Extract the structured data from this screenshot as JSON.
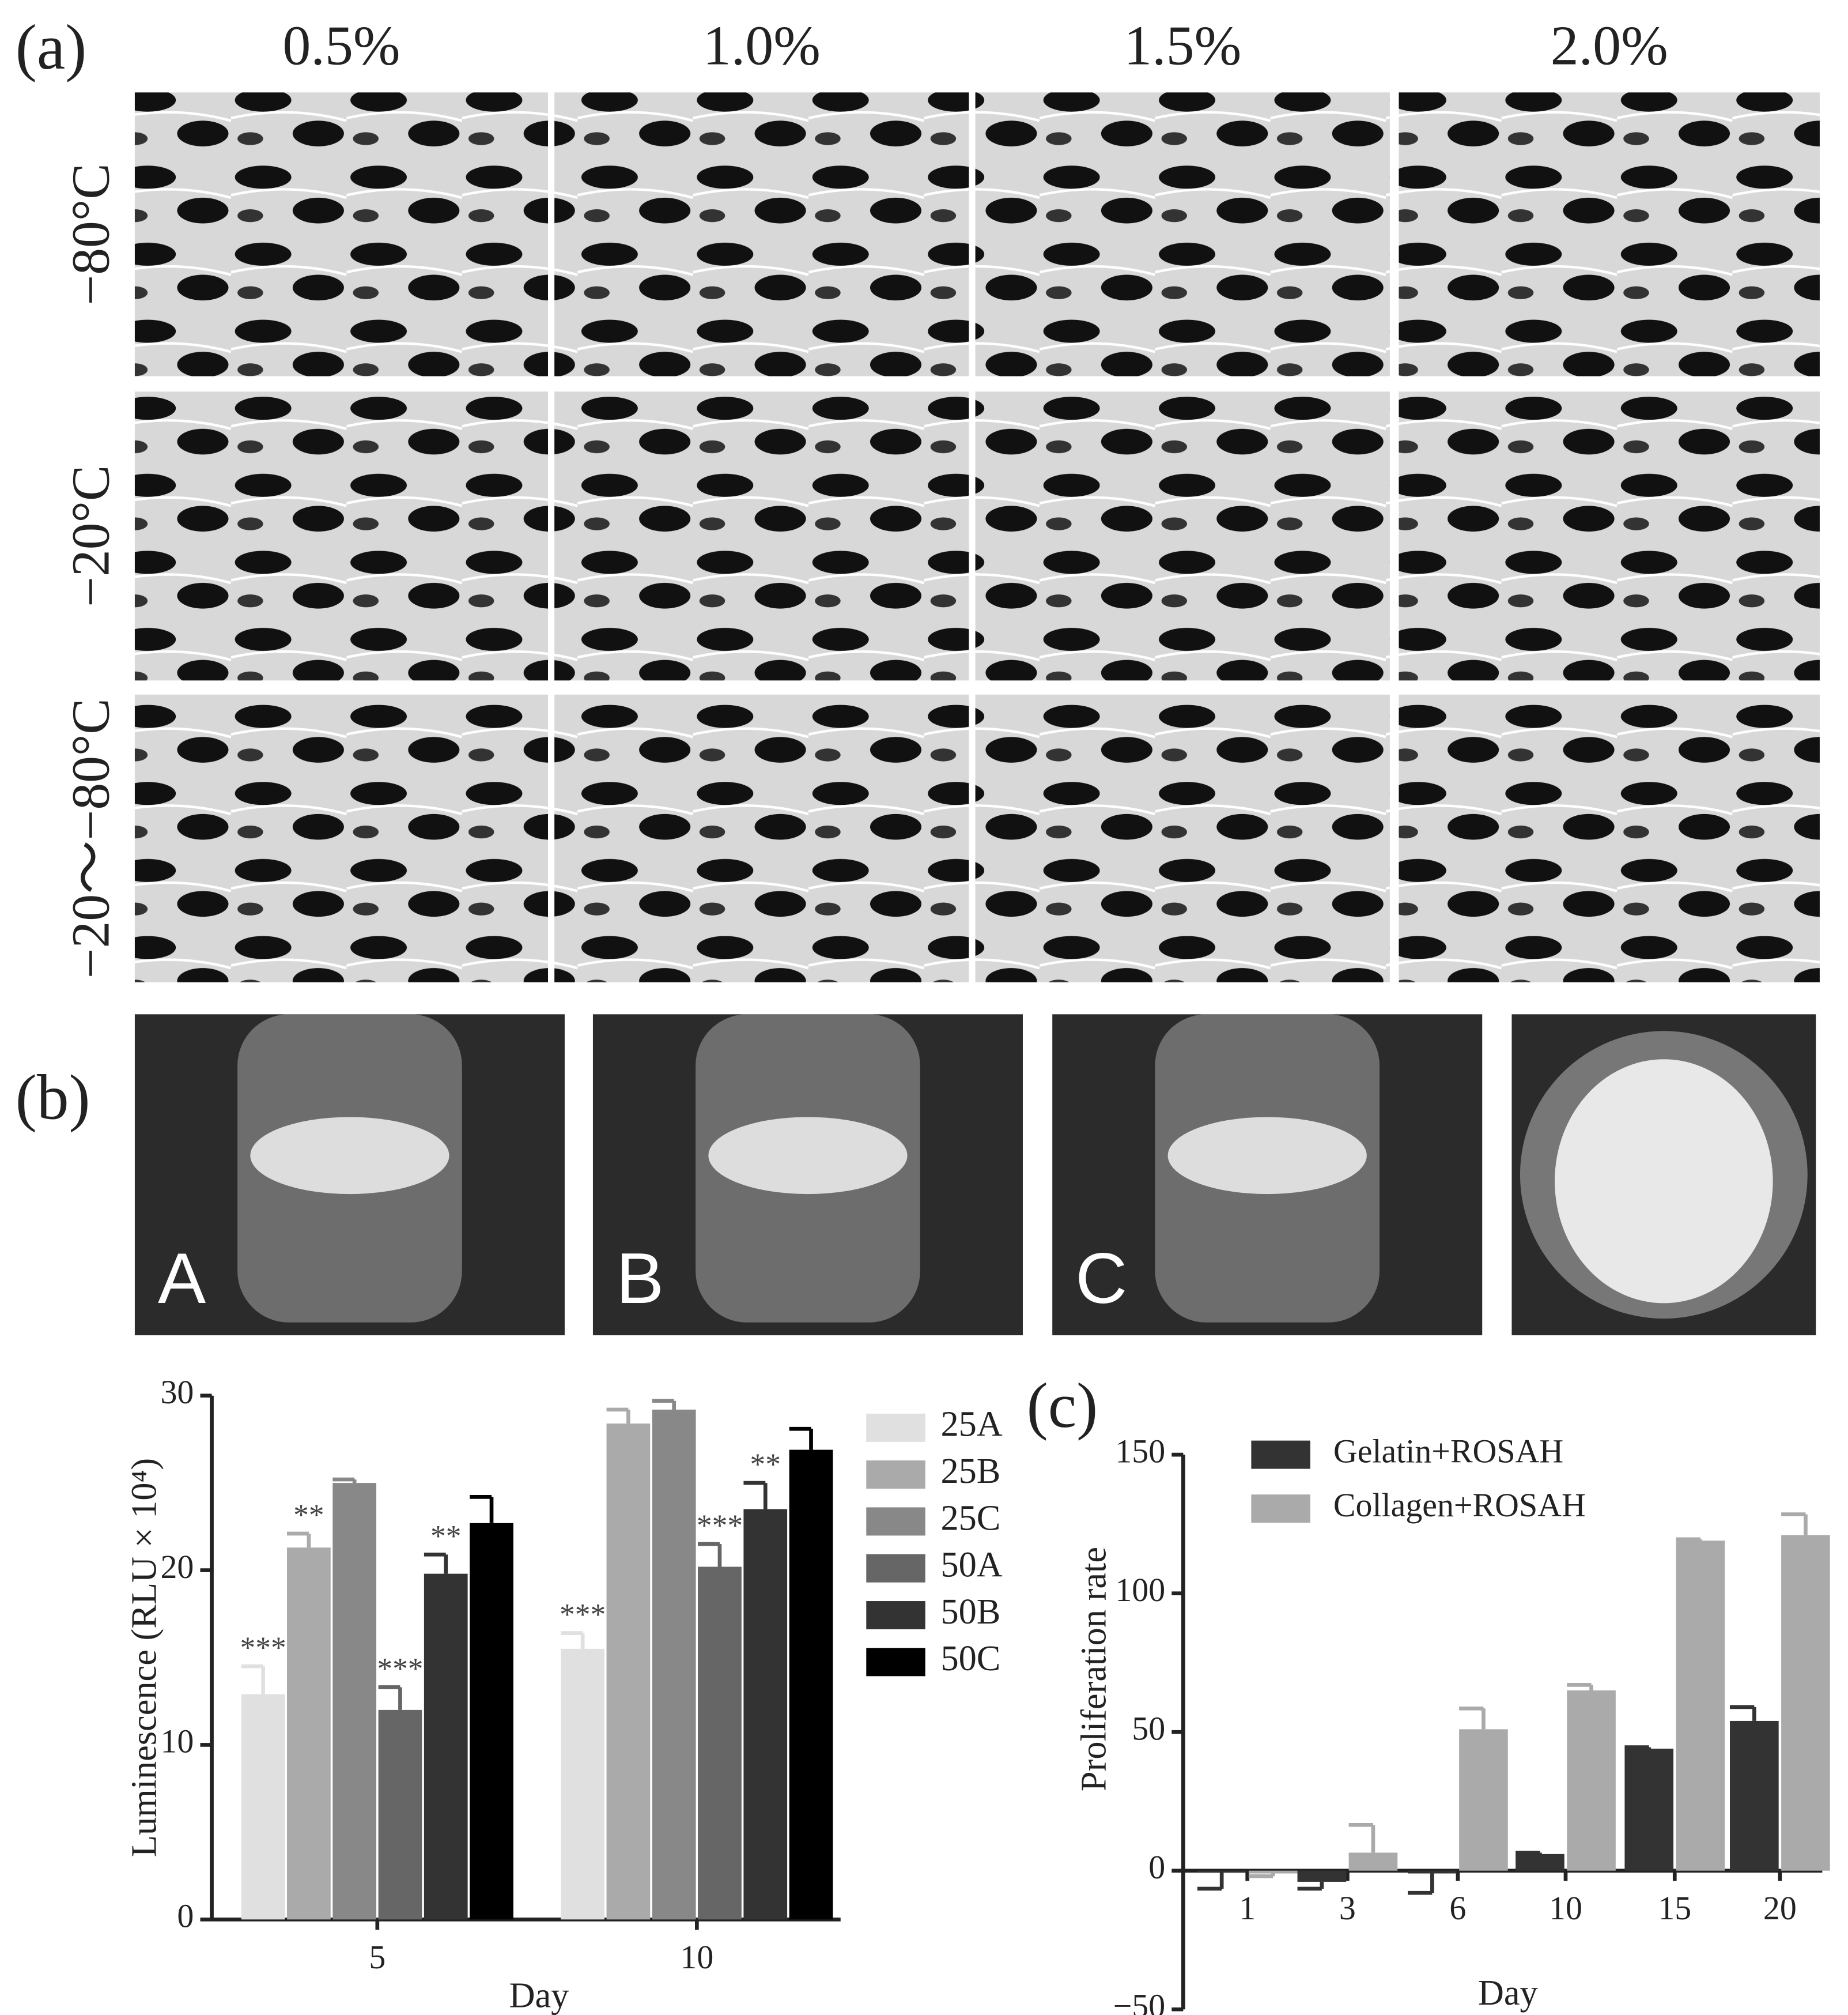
{
  "panel_labels": [
    "(a)",
    "(b)",
    "(c)"
  ],
  "sem_grid": {
    "columns": [
      "0.5%",
      "1.0%",
      "1.5%",
      "2.0%"
    ],
    "rows": [
      "−80°C",
      "−20°C",
      "−20～−80°C"
    ]
  },
  "photos": {
    "labels": [
      "A",
      "B",
      "C"
    ]
  },
  "chart_data": [
    {
      "type": "bar",
      "y_label": "Luminescence (RLU × 10⁴)",
      "x_label": "Day",
      "categories": [
        "5",
        "10"
      ],
      "series": [
        {
          "name": "25A",
          "color": "#e0e0e0",
          "values": [
            12.9,
            15.5
          ],
          "errors": [
            1.6,
            0.9
          ],
          "labels": [
            "***",
            "***"
          ]
        },
        {
          "name": "25B",
          "color": "#aaaaaa",
          "values": [
            21.3,
            28.4
          ],
          "errors": [
            0.8,
            0.8
          ],
          "labels": [
            "**",
            null
          ]
        },
        {
          "name": "25C",
          "color": "#888888",
          "values": [
            25.0,
            29.2
          ],
          "errors": [
            0.2,
            0.5
          ],
          "labels": [
            null,
            null
          ]
        },
        {
          "name": "50A",
          "color": "#666666",
          "values": [
            12.0,
            20.2
          ],
          "errors": [
            1.3,
            1.3
          ],
          "labels": [
            "***",
            "***"
          ]
        },
        {
          "name": "50B",
          "color": "#333333",
          "values": [
            19.8,
            23.5
          ],
          "errors": [
            1.1,
            1.5
          ],
          "labels": [
            "**",
            "**"
          ]
        },
        {
          "name": "50C",
          "color": "#000000",
          "values": [
            22.7,
            26.9
          ],
          "errors": [
            1.5,
            1.2
          ],
          "labels": [
            null,
            null
          ]
        }
      ],
      "ylim": [
        0,
        30
      ],
      "yticks": [
        0,
        10,
        20,
        30
      ]
    },
    {
      "type": "bar",
      "y_label": "Proliferation rate",
      "x_label": "Day",
      "categories": [
        "1",
        "3",
        "6",
        "10",
        "15",
        "20"
      ],
      "series": [
        {
          "name": "Gelatin+ROSAH",
          "color": "#333333",
          "values": [
            -0.5,
            -4,
            -1,
            6,
            44,
            54
          ],
          "errors": [
            6,
            2.5,
            7,
            0.5,
            0.5,
            5
          ]
        },
        {
          "name": "Collagen+ROSAH",
          "color": "#aaaaaa",
          "values": [
            -1,
            6.5,
            51,
            65,
            119,
            121
          ],
          "errors": [
            1,
            10,
            7.5,
            2,
            0.5,
            7.5
          ]
        }
      ],
      "ylim": [
        -50,
        150
      ],
      "yticks": [
        {
          "value": -50,
          "label": "−50"
        },
        0,
        50,
        100,
        150
      ]
    }
  ]
}
